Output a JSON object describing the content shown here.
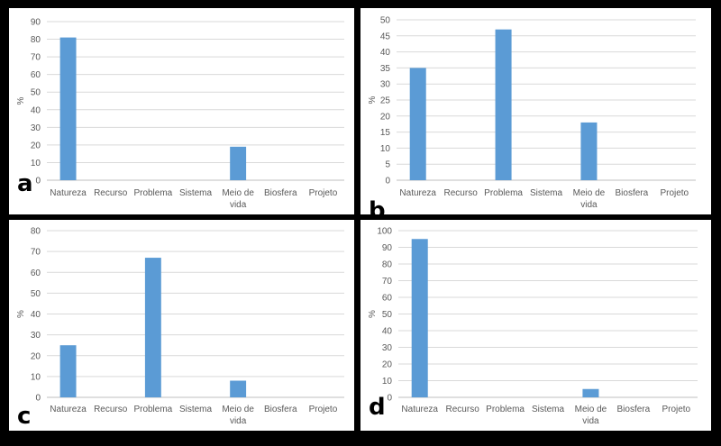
{
  "chart_data": [
    {
      "type": "bar",
      "panel_label": "a",
      "ylabel": "%",
      "ylim": [
        0,
        90
      ],
      "ystep": 10,
      "grid": true,
      "categories": [
        "Natureza",
        "Recurso",
        "Problema",
        "Sistema",
        "Meio de vida",
        "Biosfera",
        "Projeto"
      ],
      "values": [
        81,
        0,
        0,
        0,
        19,
        0,
        0
      ],
      "bar_color": "#5b9bd5"
    },
    {
      "type": "bar",
      "panel_label": "b",
      "ylabel": "%",
      "ylim": [
        0,
        50
      ],
      "ystep": 5,
      "grid": true,
      "categories": [
        "Natureza",
        "Recurso",
        "Problema",
        "Sistema",
        "Meio de vida",
        "Biosfera",
        "Projeto"
      ],
      "values": [
        35,
        0,
        47,
        0,
        18,
        0,
        0
      ],
      "bar_color": "#5b9bd5"
    },
    {
      "type": "bar",
      "panel_label": "c",
      "ylabel": "%",
      "ylim": [
        0,
        80
      ],
      "ystep": 10,
      "grid": true,
      "categories": [
        "Natureza",
        "Recurso",
        "Problema",
        "Sistema",
        "Meio de vida",
        "Biosfera",
        "Projeto"
      ],
      "values": [
        25,
        0,
        67,
        0,
        8,
        0,
        0
      ],
      "bar_color": "#5b9bd5"
    },
    {
      "type": "bar",
      "panel_label": "d",
      "ylabel": "%",
      "ylim": [
        0,
        100
      ],
      "ystep": 10,
      "grid": true,
      "categories": [
        "Natureza",
        "Recurso",
        "Problema",
        "Sistema",
        "Meio de vida",
        "Biosfera",
        "Projeto"
      ],
      "values": [
        95,
        0,
        0,
        0,
        5,
        0,
        0
      ],
      "bar_color": "#5b9bd5"
    }
  ]
}
